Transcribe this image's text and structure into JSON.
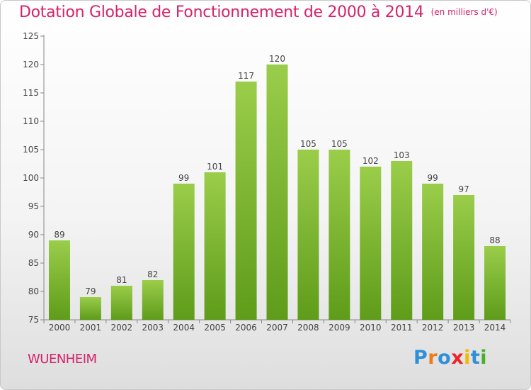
{
  "header": {
    "title": "Dotation Globale de Fonctionnement de 2000 à 2014",
    "unit": "(en milliers d'€)"
  },
  "footer": {
    "commune": "WUENHEIM",
    "logo": {
      "text": "Proxiti",
      "colors": [
        "#2f8fd8",
        "#f07a1a",
        "#2f8fd8",
        "#e8262a",
        "#f5b800",
        "#2f8fd8",
        "#4caf2a"
      ]
    }
  },
  "chart_data": {
    "type": "bar",
    "title": "Dotation Globale de Fonctionnement de 2000 à 2014",
    "subtitle": "(en milliers d'€)",
    "xlabel": "",
    "ylabel": "",
    "categories": [
      "2000",
      "2001",
      "2002",
      "2003",
      "2004",
      "2005",
      "2006",
      "2007",
      "2008",
      "2009",
      "2010",
      "2011",
      "2012",
      "2013",
      "2014"
    ],
    "values": [
      89,
      79,
      81,
      82,
      99,
      101,
      117,
      120,
      105,
      105,
      102,
      103,
      99,
      97,
      88
    ],
    "ylim": [
      75,
      125
    ],
    "yticks": [
      75,
      80,
      85,
      90,
      95,
      100,
      105,
      110,
      115,
      120,
      125
    ],
    "grid": false,
    "data_labels": true,
    "colors": {
      "bar_light": "#9acd4a",
      "bar_dark": "#5e9c1a",
      "axis": "#888888",
      "text": "#444444"
    }
  }
}
